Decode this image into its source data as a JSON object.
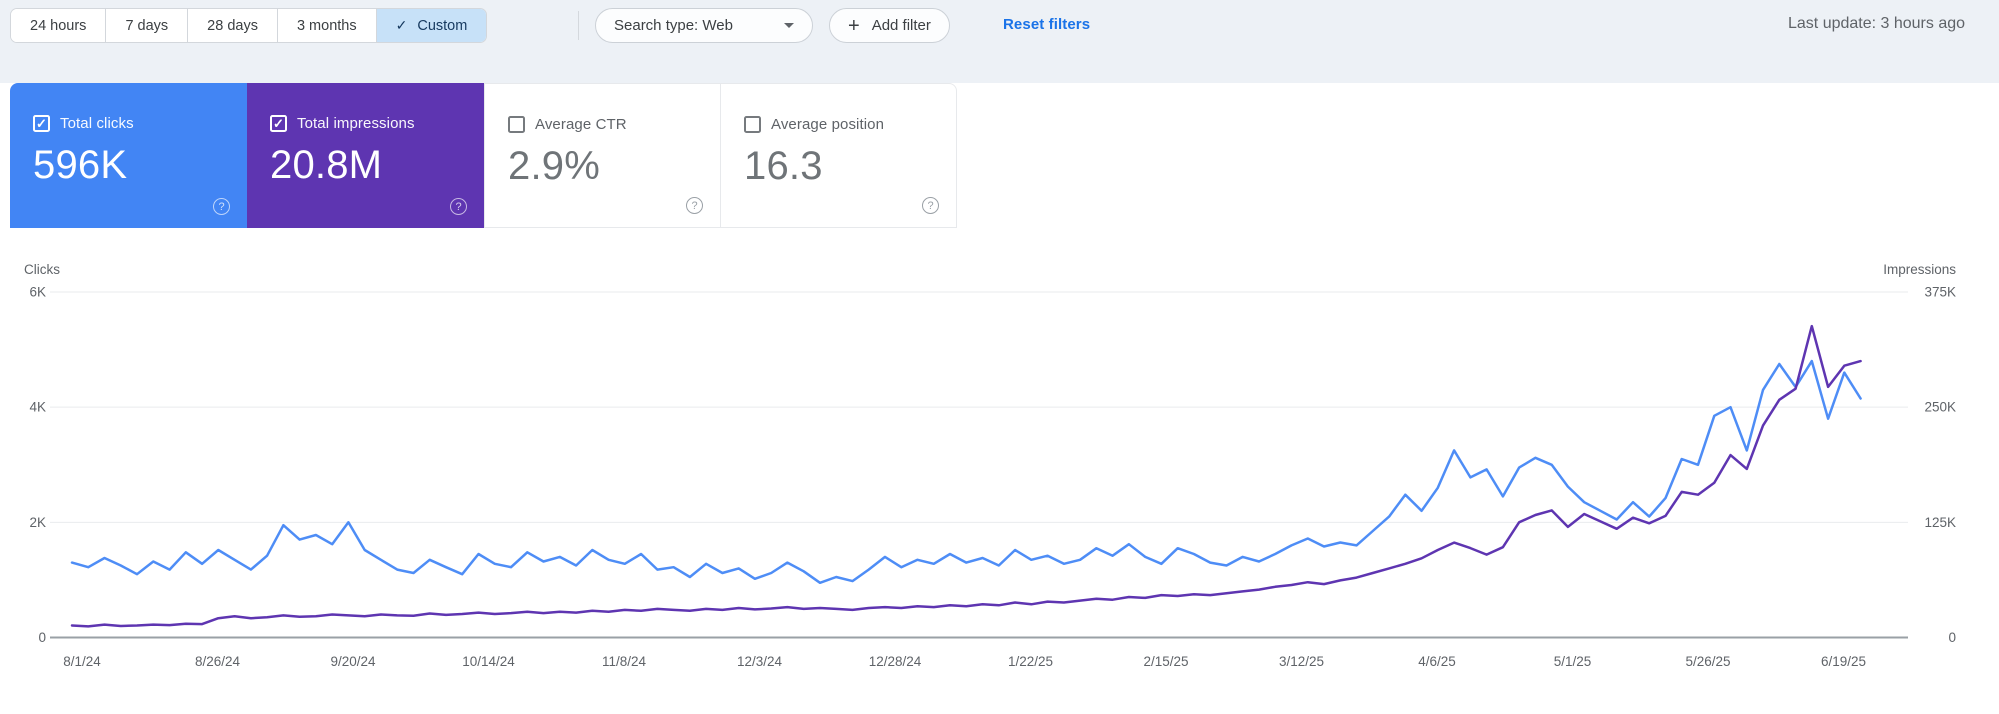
{
  "toolbar": {
    "date_ranges": [
      {
        "label": "24 hours",
        "selected": false
      },
      {
        "label": "7 days",
        "selected": false
      },
      {
        "label": "28 days",
        "selected": false
      },
      {
        "label": "3 months",
        "selected": false
      },
      {
        "label": "Custom",
        "selected": true
      }
    ],
    "search_type_label": "Search type: Web",
    "add_filter_label": "Add filter",
    "reset_filters_label": "Reset filters",
    "last_update": "Last update: 3 hours ago"
  },
  "metric_cards": [
    {
      "label": "Total clicks",
      "value": "596K",
      "checked": true,
      "selected": true,
      "bg": "#4285f4"
    },
    {
      "label": "Total impressions",
      "value": "20.8M",
      "checked": true,
      "selected": true,
      "bg": "#5e35b1"
    },
    {
      "label": "Average CTR",
      "value": "2.9%",
      "checked": false,
      "selected": false,
      "bg": "#ffffff"
    },
    {
      "label": "Average position",
      "value": "16.3",
      "checked": false,
      "selected": false,
      "bg": "#ffffff"
    }
  ],
  "chart_data": {
    "type": "line",
    "grid": true,
    "start_date": "8/1/24",
    "end_date": "6/27/25",
    "sample_interval_days": 3,
    "tick_interval_days": 25,
    "x_ticks": [
      "8/1/24",
      "8/26/24",
      "9/20/24",
      "10/14/24",
      "11/8/24",
      "12/3/24",
      "12/28/24",
      "1/22/25",
      "2/15/25",
      "3/12/25",
      "4/6/25",
      "5/1/25",
      "5/26/25",
      "6/19/25"
    ],
    "left_axis": {
      "title": "Clicks",
      "ticks": [
        "6K",
        "4K",
        "2K",
        "0"
      ],
      "range": [
        0,
        6000
      ]
    },
    "right_axis": {
      "title": "Impressions",
      "ticks": [
        "375K",
        "250K",
        "125K",
        "0"
      ],
      "range": [
        0,
        375000
      ]
    },
    "series": [
      {
        "name": "Total clicks",
        "axis": "left",
        "color": "#4e8df6",
        "unit": "clicks per day",
        "values": [
          1300,
          1220,
          1380,
          1250,
          1100,
          1320,
          1180,
          1480,
          1280,
          1520,
          1350,
          1180,
          1420,
          1950,
          1700,
          1780,
          1620,
          2000,
          1520,
          1350,
          1180,
          1120,
          1350,
          1220,
          1100,
          1450,
          1280,
          1220,
          1480,
          1320,
          1400,
          1250,
          1520,
          1350,
          1280,
          1450,
          1180,
          1220,
          1050,
          1280,
          1120,
          1200,
          1020,
          1120,
          1300,
          1150,
          950,
          1050,
          980,
          1180,
          1400,
          1220,
          1350,
          1280,
          1450,
          1300,
          1380,
          1250,
          1520,
          1350,
          1420,
          1280,
          1350,
          1550,
          1420,
          1620,
          1400,
          1280,
          1550,
          1450,
          1300,
          1250,
          1400,
          1320,
          1450,
          1600,
          1720,
          1580,
          1650,
          1600,
          1850,
          2100,
          2480,
          2200,
          2600,
          3250,
          2780,
          2920,
          2450,
          2950,
          3120,
          3000,
          2620,
          2350,
          2200,
          2050,
          2350,
          2100,
          2420,
          3100,
          3000,
          3850,
          4000,
          3250,
          4300,
          4750,
          4350,
          4800,
          3800,
          4600,
          4150
        ]
      },
      {
        "name": "Total impressions",
        "axis": "right",
        "color": "#5e35b1",
        "unit": "impressions per day",
        "values": [
          13000,
          12000,
          14000,
          12500,
          13000,
          14000,
          13500,
          15000,
          14500,
          21000,
          23000,
          21000,
          22000,
          24000,
          22500,
          23000,
          25000,
          24000,
          23000,
          25000,
          24000,
          23500,
          26000,
          24500,
          25500,
          27000,
          25500,
          26500,
          28000,
          26500,
          28000,
          27000,
          29000,
          28000,
          30000,
          29000,
          31000,
          30000,
          29000,
          31000,
          30000,
          32000,
          30500,
          31500,
          33000,
          31000,
          32000,
          31000,
          30000,
          32000,
          33000,
          32000,
          34000,
          33000,
          35000,
          34000,
          36000,
          35000,
          38000,
          36000,
          39000,
          38000,
          40000,
          42000,
          41000,
          44000,
          43000,
          46000,
          45000,
          47000,
          46000,
          48000,
          50000,
          52000,
          55000,
          57000,
          60000,
          58000,
          62000,
          65000,
          70000,
          75000,
          80000,
          86000,
          95000,
          103000,
          97000,
          90000,
          98000,
          125000,
          133000,
          138000,
          120000,
          134000,
          126000,
          118000,
          130000,
          124000,
          132000,
          158000,
          155000,
          168000,
          198000,
          183000,
          230000,
          258000,
          270000,
          338000,
          272000,
          295000,
          300000
        ]
      }
    ]
  },
  "colors": {
    "topbar_bg": "#edf1f6",
    "selected_chip_bg": "#c7e1f8",
    "link_blue": "#1a73e8",
    "clicks_card": "#4285f4",
    "impressions_card": "#5e35b1",
    "gridline": "#e9ebee",
    "axis_baseline": "#9aa0a6"
  }
}
